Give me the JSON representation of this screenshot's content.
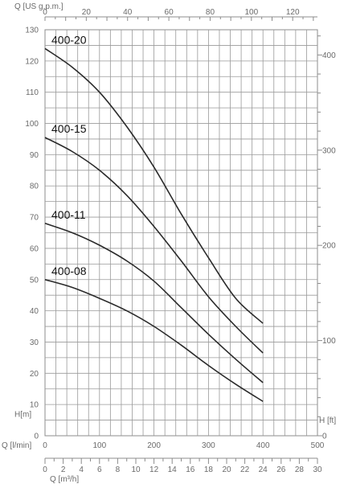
{
  "chart_data": {
    "type": "line",
    "axes": {
      "top": {
        "label": "Q [US g.p.m.]",
        "ticks": [
          0,
          20,
          40,
          60,
          80,
          100,
          120
        ],
        "range": [
          0,
          132
        ]
      },
      "left": {
        "label": "H[m]",
        "ticks": [
          0,
          10,
          20,
          30,
          40,
          50,
          60,
          70,
          80,
          90,
          100,
          110,
          120,
          130
        ],
        "range": [
          0,
          130
        ]
      },
      "right": {
        "label": "H [ft]",
        "ticks": [
          0,
          100,
          200,
          300,
          400
        ],
        "range": [
          0,
          426.5
        ]
      },
      "bottom_lmin": {
        "label": "Q [l/min]",
        "ticks": [
          0,
          100,
          200,
          300,
          400,
          500
        ],
        "range": [
          0,
          500
        ]
      },
      "bottom_m3h": {
        "label": "Q [m³/h]",
        "ticks": [
          0,
          2,
          4,
          6,
          8,
          10,
          12,
          14,
          16,
          18,
          20,
          22,
          24,
          26,
          28,
          30
        ],
        "range": [
          0,
          30
        ]
      }
    },
    "grid": true,
    "series": [
      {
        "name": "400-20",
        "x": [
          0,
          50,
          100,
          150,
          200,
          250,
          300,
          350,
          400
        ],
        "y": [
          124,
          118,
          110,
          99,
          86,
          71,
          57,
          44,
          36
        ]
      },
      {
        "name": "400-15",
        "x": [
          0,
          50,
          100,
          150,
          200,
          250,
          300,
          350,
          400
        ],
        "y": [
          95.5,
          91,
          85,
          77,
          67,
          56,
          44.5,
          35,
          26.5
        ]
      },
      {
        "name": "400-11",
        "x": [
          0,
          50,
          100,
          150,
          200,
          250,
          300,
          350,
          400
        ],
        "y": [
          68,
          65,
          61,
          56,
          49.5,
          41,
          32.5,
          24.5,
          17
        ]
      },
      {
        "name": "400-08",
        "x": [
          0,
          50,
          100,
          150,
          200,
          250,
          300,
          350,
          400
        ],
        "y": [
          50,
          47.5,
          44,
          40,
          35,
          29,
          22.5,
          16.5,
          11
        ]
      }
    ]
  }
}
